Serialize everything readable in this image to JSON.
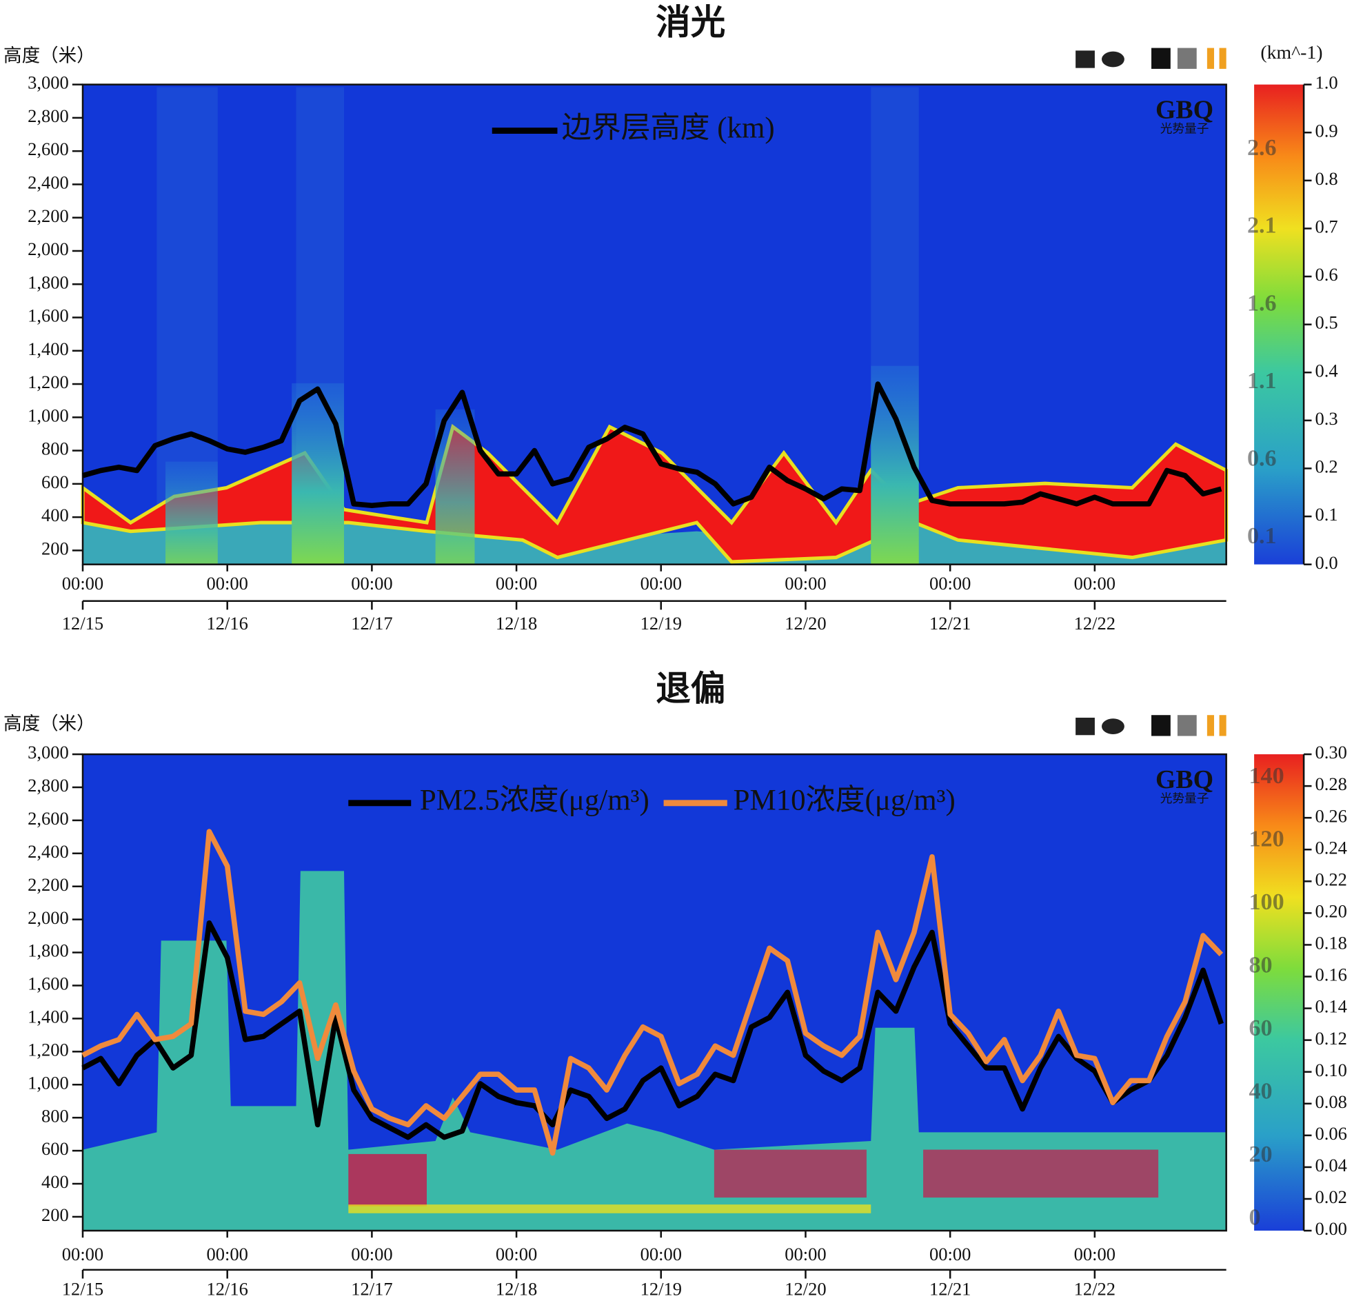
{
  "chart_data": [
    {
      "type": "line",
      "title": "消光",
      "y_label": "高度（米）",
      "watermark": "GBQ",
      "watermark_sub": "光势量子",
      "x": [
        0,
        0.125,
        0.25,
        0.375,
        0.5,
        0.625,
        0.75,
        0.875,
        1,
        1.125,
        1.25,
        1.375,
        1.5,
        1.625,
        1.75,
        1.875,
        2,
        2.125,
        2.25,
        2.375,
        2.5,
        2.625,
        2.75,
        2.875,
        3,
        3.125,
        3.25,
        3.375,
        3.5,
        3.625,
        3.75,
        3.875,
        4,
        4.125,
        4.25,
        4.375,
        4.5,
        4.625,
        4.75,
        4.875,
        5,
        5.125,
        5.25,
        5.375,
        5.5,
        5.625,
        5.75,
        5.875,
        6,
        6.125,
        6.25,
        6.375,
        6.5,
        6.625,
        6.75,
        6.875,
        7,
        7.125,
        7.25,
        7.375,
        7.5,
        7.625,
        7.75,
        7.875
      ],
      "xlim": [
        0,
        7.91
      ],
      "xticks": [
        {
          "value": 0,
          "label": "00:00"
        },
        {
          "value": 1,
          "label": "00:00"
        },
        {
          "value": 2,
          "label": "00:00"
        },
        {
          "value": 3,
          "label": "00:00"
        },
        {
          "value": 4,
          "label": "00:00"
        },
        {
          "value": 5,
          "label": "00:00"
        },
        {
          "value": 6,
          "label": "00:00"
        },
        {
          "value": 7,
          "label": "00:00"
        }
      ],
      "date_ticks": [
        {
          "value": 0,
          "label": "12/15"
        },
        {
          "value": 1,
          "label": "12/16"
        },
        {
          "value": 2,
          "label": "12/17"
        },
        {
          "value": 3,
          "label": "12/18"
        },
        {
          "value": 4,
          "label": "12/19"
        },
        {
          "value": 5,
          "label": "12/20"
        },
        {
          "value": 6,
          "label": "12/21"
        },
        {
          "value": 7,
          "label": "12/22"
        }
      ],
      "ylim": [
        116,
        3000
      ],
      "yticks": [
        200,
        400,
        600,
        800,
        {
          "value": 1000,
          "label": "1,000"
        },
        {
          "value": 1200,
          "label": "1,200"
        },
        {
          "value": 1400,
          "label": "1,400"
        },
        {
          "value": 1600,
          "label": "1,600"
        },
        {
          "value": 1800,
          "label": "1,800"
        },
        {
          "value": 2000,
          "label": "2,000"
        },
        {
          "value": 2200,
          "label": "2,200"
        },
        {
          "value": 2400,
          "label": "2,400"
        },
        {
          "value": 2600,
          "label": "2,600"
        },
        {
          "value": 2800,
          "label": "2,800"
        },
        {
          "value": 3000,
          "label": "3,000"
        }
      ],
      "colorbar": {
        "label": "(km^-1)",
        "lim": [
          0,
          1.0
        ],
        "ticks": [
          {
            "value": 0,
            "label": "0.0"
          },
          0.1,
          0.2,
          0.3,
          0.4,
          0.5,
          0.6,
          0.7,
          0.8,
          0.9,
          {
            "value": 1,
            "label": "1.0"
          }
        ],
        "inner_lim": [
          -0.07,
          3.02
        ],
        "inner_ticks": [
          0.1,
          0.6,
          1.1,
          1.6,
          2.1,
          2.6
        ]
      },
      "series": [
        {
          "name": "边界层高度 (km)",
          "color": "#000000",
          "values": [
            650,
            680,
            700,
            680,
            830,
            870,
            900,
            860,
            810,
            790,
            820,
            860,
            1100,
            1170,
            960,
            480,
            470,
            480,
            480,
            600,
            980,
            1150,
            800,
            660,
            660,
            800,
            600,
            630,
            820,
            870,
            940,
            900,
            720,
            690,
            670,
            600,
            480,
            520,
            700,
            620,
            570,
            510,
            570,
            560,
            1200,
            990,
            700,
            500,
            480,
            480,
            480,
            480,
            490,
            540,
            510,
            480,
            520,
            480,
            480,
            480,
            680,
            650,
            540,
            570
          ]
        }
      ]
    },
    {
      "type": "line",
      "title": "退偏",
      "y_label": "高度（米）",
      "watermark": "GBQ",
      "watermark_sub": "光势量子",
      "x": [
        0,
        0.125,
        0.25,
        0.375,
        0.5,
        0.625,
        0.75,
        0.875,
        1,
        1.125,
        1.25,
        1.375,
        1.5,
        1.625,
        1.75,
        1.875,
        2,
        2.125,
        2.25,
        2.375,
        2.5,
        2.625,
        2.75,
        2.875,
        3,
        3.125,
        3.25,
        3.375,
        3.5,
        3.625,
        3.75,
        3.875,
        4,
        4.125,
        4.25,
        4.375,
        4.5,
        4.625,
        4.75,
        4.875,
        5,
        5.125,
        5.25,
        5.375,
        5.5,
        5.625,
        5.75,
        5.875,
        6,
        6.125,
        6.25,
        6.375,
        6.5,
        6.625,
        6.75,
        6.875,
        7,
        7.125,
        7.25,
        7.375,
        7.5,
        7.625,
        7.75,
        7.875
      ],
      "xlim": [
        0,
        7.91
      ],
      "xticks": [
        {
          "value": 0,
          "label": "00:00"
        },
        {
          "value": 1,
          "label": "00:00"
        },
        {
          "value": 2,
          "label": "00:00"
        },
        {
          "value": 3,
          "label": "00:00"
        },
        {
          "value": 4,
          "label": "00:00"
        },
        {
          "value": 5,
          "label": "00:00"
        },
        {
          "value": 6,
          "label": "00:00"
        },
        {
          "value": 7,
          "label": "00:00"
        }
      ],
      "date_ticks": [
        {
          "value": 0,
          "label": "12/15"
        },
        {
          "value": 1,
          "label": "12/16"
        },
        {
          "value": 2,
          "label": "12/17"
        },
        {
          "value": 3,
          "label": "12/18"
        },
        {
          "value": 4,
          "label": "12/19"
        },
        {
          "value": 5,
          "label": "12/20"
        },
        {
          "value": 6,
          "label": "12/21"
        },
        {
          "value": 7,
          "label": "12/22"
        }
      ],
      "ylim": [
        116,
        3000
      ],
      "yticks": [
        200,
        400,
        600,
        800,
        {
          "value": 1000,
          "label": "1,000"
        },
        {
          "value": 1200,
          "label": "1,200"
        },
        {
          "value": 1400,
          "label": "1,400"
        },
        {
          "value": 1600,
          "label": "1,600"
        },
        {
          "value": 1800,
          "label": "1,800"
        },
        {
          "value": 2000,
          "label": "2,000"
        },
        {
          "value": 2200,
          "label": "2,200"
        },
        {
          "value": 2400,
          "label": "2,400"
        },
        {
          "value": 2600,
          "label": "2,600"
        },
        {
          "value": 2800,
          "label": "2,800"
        },
        {
          "value": 3000,
          "label": "3,000"
        }
      ],
      "y2lim": [
        -3.6,
        147.5
      ],
      "y2ticks": [
        0,
        20,
        40,
        60,
        80,
        100,
        120,
        140
      ],
      "colorbar": {
        "lim": [
          0,
          0.3
        ],
        "ticks": [
          {
            "value": 0,
            "label": "0.00"
          },
          0.02,
          0.04,
          0.06,
          0.08,
          {
            "value": 0.1,
            "label": "0.10"
          },
          0.12,
          0.14,
          0.16,
          0.18,
          {
            "value": 0.2,
            "label": "0.20"
          },
          0.22,
          0.24,
          0.26,
          0.28,
          {
            "value": 0.3,
            "label": "0.30"
          }
        ]
      },
      "series": [
        {
          "name": "PM2.5浓度(μg/m³)",
          "color": "#000000",
          "axis": "y2",
          "values": [
            48,
            51,
            43,
            52,
            57,
            48,
            52,
            94,
            83,
            57,
            58,
            62,
            66,
            30,
            64,
            41,
            32,
            29,
            26,
            30,
            26,
            28,
            43,
            39,
            37,
            36,
            30,
            41,
            39,
            32,
            35,
            44,
            48,
            36,
            39,
            46,
            44,
            61,
            64,
            72,
            52,
            47,
            44,
            48,
            72,
            66,
            80,
            91,
            62,
            55,
            48,
            48,
            35,
            48,
            58,
            51,
            47,
            37,
            41,
            44,
            52,
            64,
            79,
            62
          ]
        },
        {
          "name": "PM10浓度(μg/m³)",
          "color": "#f08a3c",
          "axis": "y2",
          "values": [
            52,
            55,
            57,
            65,
            57,
            58,
            62,
            123,
            112,
            66,
            65,
            69,
            75,
            51,
            68,
            47,
            35,
            32,
            30,
            36,
            32,
            39,
            46,
            46,
            41,
            41,
            21,
            51,
            48,
            41,
            52,
            61,
            58,
            43,
            46,
            55,
            52,
            69,
            86,
            82,
            59,
            55,
            52,
            58,
            91,
            76,
            91,
            115,
            65,
            59,
            50,
            57,
            44,
            52,
            66,
            52,
            51,
            37,
            44,
            44,
            58,
            69,
            90,
            84
          ]
        }
      ]
    }
  ]
}
